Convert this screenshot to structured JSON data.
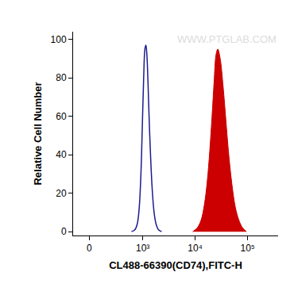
{
  "chart_data": {
    "type": "line",
    "x_label": "CL488-66390(CD74),FITC-H",
    "y_label": "Relative Cell Number",
    "annotations": [
      {
        "text": "WWW.PTGLAB.COM"
      }
    ],
    "xlim": [
      -150,
      380000
    ],
    "xticks": [
      0,
      {
        "value": 1000,
        "label": "10³"
      },
      {
        "value": 10000,
        "label": "10⁴"
      },
      {
        "value": 100000,
        "label": "10⁵"
      }
    ],
    "ylim": [
      -2,
      104
    ],
    "yticks": [
      0,
      20,
      40,
      60,
      80,
      100
    ],
    "grid": false,
    "series": [
      {
        "type": "line",
        "color": "#1c1c8f",
        "x": [
          600,
          700,
          780,
          850,
          920,
          980,
          1040,
          1100,
          1150,
          1200,
          1260,
          1330,
          1420,
          1520,
          1650,
          1800,
          2000,
          2300
        ],
        "values": [
          0,
          1,
          4,
          12,
          30,
          55,
          80,
          95,
          97,
          92,
          78,
          58,
          38,
          22,
          10,
          4,
          1,
          0
        ]
      },
      {
        "type": "area",
        "color": "#cc0000",
        "x": [
          9000,
          11000,
          13000,
          15000,
          17000,
          19000,
          21000,
          23000,
          25000,
          27000,
          30000,
          34000,
          38000,
          43000,
          50000,
          58000,
          68000,
          80000,
          95000
        ],
        "values": [
          0,
          2,
          6,
          14,
          26,
          42,
          60,
          78,
          92,
          95,
          90,
          76,
          60,
          42,
          25,
          13,
          6,
          2,
          0
        ]
      }
    ]
  }
}
